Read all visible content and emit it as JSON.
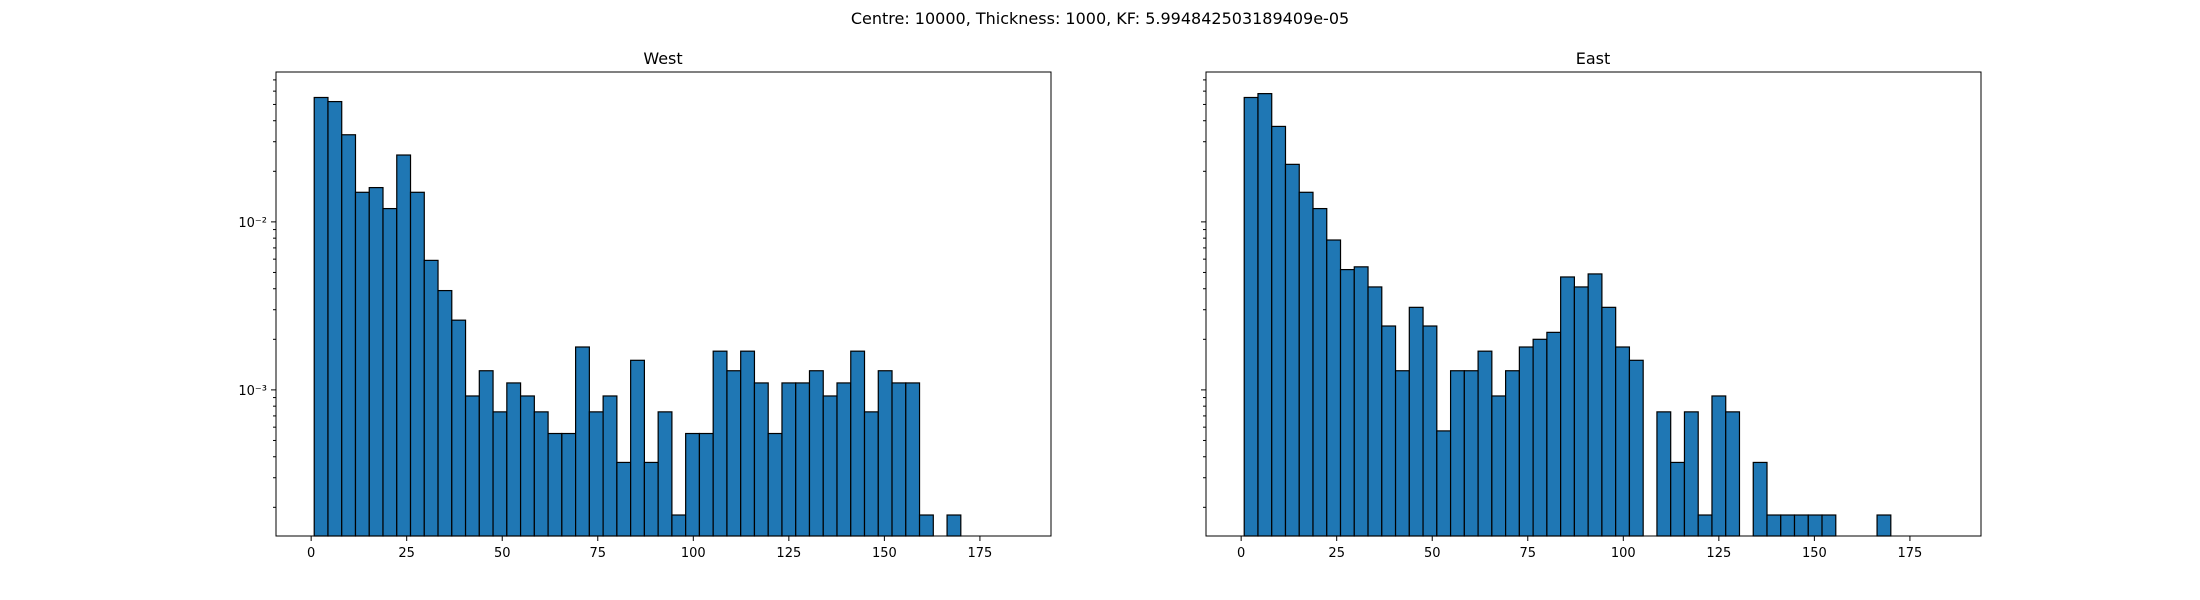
{
  "chart_data": {
    "type": "bar",
    "suptitle": "Centre: 10000, Thickness: 1000, KF: 5.994842503189409e-05",
    "subplots": [
      {
        "title": "West",
        "yscale": "log",
        "show_y_tick_labels": true,
        "bin_start": 0.8,
        "bin_width": 3.6,
        "xlim": [
          -9.2,
          193.6
        ],
        "ylim": [
          0.000135,
          0.078
        ],
        "xticks": [
          0,
          25,
          50,
          75,
          100,
          125,
          150,
          175
        ],
        "xtick_labels": [
          "0",
          "25",
          "50",
          "75",
          "100",
          "125",
          "150",
          "175"
        ],
        "yticks": [
          0.01,
          0.001
        ],
        "ytick_labels": [
          "10⁻²",
          "10⁻³"
        ],
        "values": [
          0.055,
          0.052,
          0.033,
          0.015,
          0.016,
          0.012,
          0.025,
          0.015,
          0.0059,
          0.0039,
          0.0026,
          0.00092,
          0.0013,
          0.00074,
          0.0011,
          0.00092,
          0.00074,
          0.00055,
          0.00055,
          0.0018,
          0.00074,
          0.00092,
          0.00037,
          0.0015,
          0.00037,
          0.00074,
          0.00018,
          0.00055,
          0.00055,
          0.0017,
          0.0013,
          0.0017,
          0.0011,
          0.00055,
          0.0011,
          0.0011,
          0.0013,
          0.00092,
          0.0011,
          0.0017,
          0.00074,
          0.0013,
          0.0011,
          0.0011,
          0.00018,
          0,
          0.00018
        ]
      },
      {
        "title": "East",
        "yscale": "log",
        "show_y_tick_labels": false,
        "bin_start": 0.8,
        "bin_width": 3.6,
        "xlim": [
          -9.2,
          193.6
        ],
        "ylim": [
          0.000135,
          0.078
        ],
        "xticks": [
          0,
          25,
          50,
          75,
          100,
          125,
          150,
          175
        ],
        "xtick_labels": [
          "0",
          "25",
          "50",
          "75",
          "100",
          "125",
          "150",
          "175"
        ],
        "yticks": [
          0.01,
          0.001
        ],
        "ytick_labels": [
          "",
          ""
        ],
        "values": [
          0.055,
          0.058,
          0.037,
          0.022,
          0.015,
          0.012,
          0.0078,
          0.0052,
          0.0054,
          0.0041,
          0.0024,
          0.0013,
          0.0031,
          0.0024,
          0.00057,
          0.0013,
          0.0013,
          0.0017,
          0.00092,
          0.0013,
          0.0018,
          0.002,
          0.0022,
          0.0047,
          0.0041,
          0.0049,
          0.0031,
          0.0018,
          0.0015,
          0,
          0.00074,
          0.00037,
          0.00074,
          0.00018,
          0.00092,
          0.00074,
          0,
          0.00037,
          0.00018,
          0.00018,
          0.00018,
          0.00018,
          0.00018,
          0,
          0,
          0,
          0.00018
        ]
      }
    ]
  }
}
